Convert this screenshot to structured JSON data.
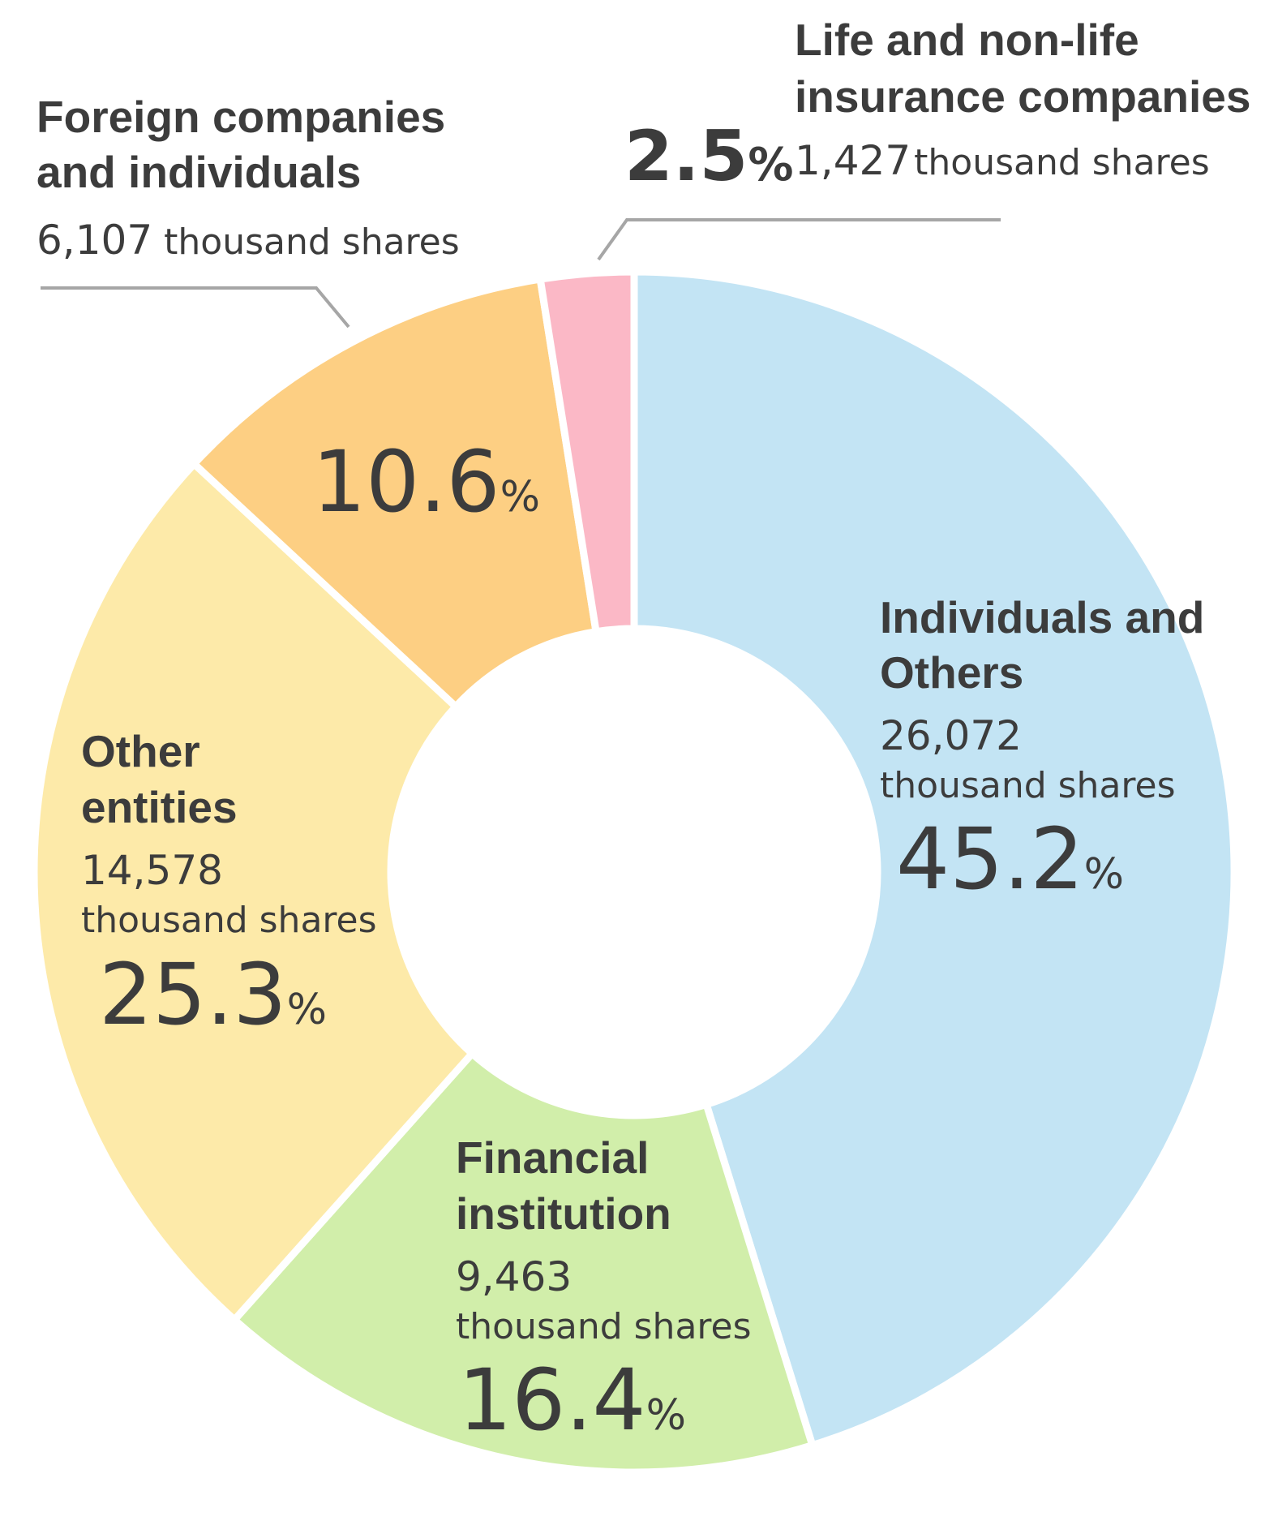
{
  "chart_data": {
    "type": "pie",
    "unit_label": "thousand shares",
    "percent_sign": "%",
    "colors": {
      "individuals": "#c3e4f4",
      "financial": "#d1eeaa",
      "other_entities": "#fdeaa9",
      "foreign": "#fdcf83",
      "insurance": "#fbb8c6",
      "leader_line": "#a6a6a6",
      "separator": "#ffffff"
    },
    "slices": [
      {
        "key": "individuals",
        "name_lines": [
          "Individuals and",
          "Others"
        ],
        "shares": "26,072",
        "percent": 45.2,
        "percent_label": "45.2"
      },
      {
        "key": "financial",
        "name_lines": [
          "Financial",
          "institution"
        ],
        "shares": "9,463",
        "percent": 16.4,
        "percent_label": "16.4"
      },
      {
        "key": "other_entities",
        "name_lines": [
          "Other",
          "entities"
        ],
        "shares": "14,578",
        "percent": 25.3,
        "percent_label": "25.3"
      },
      {
        "key": "foreign",
        "name_lines": [
          "Foreign companies",
          "and individuals"
        ],
        "shares": "6,107",
        "percent": 10.6,
        "percent_label": "10.6"
      },
      {
        "key": "insurance",
        "name_lines": [
          "Life and non-life",
          "insurance companies"
        ],
        "shares": "1,427",
        "percent": 2.5,
        "percent_label": "2.5"
      }
    ]
  }
}
